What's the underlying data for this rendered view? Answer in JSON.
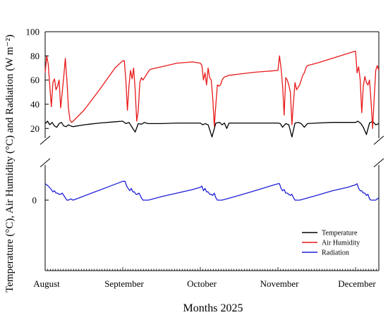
{
  "chart_data": {
    "type": "line",
    "title": "",
    "xlabel": "Months 2025",
    "ylabel": "Temperature (°C), Air Humidity (°C) and Radiation (W m⁻²)",
    "y_break": true,
    "upper_panel": {
      "ylim": [
        12,
        100
      ],
      "yticks": [
        "20",
        "40",
        "60",
        "80",
        "100"
      ]
    },
    "lower_panel": {
      "ylim": [
        -60,
        30
      ],
      "yticks": [
        "0"
      ]
    },
    "xlim": [
      0,
      4.3
    ],
    "x_tick_months": [
      "August",
      "September",
      "October",
      "November",
      "December"
    ],
    "x_tick_positions": [
      0,
      1,
      2,
      3,
      4
    ],
    "legend_position": "bottom-right",
    "grid": false,
    "series": [
      {
        "name": "Temperature",
        "color": "#000000",
        "panel": "upper",
        "x": [
          0,
          0.03,
          0.06,
          0.09,
          0.12,
          0.15,
          0.18,
          0.21,
          0.24,
          0.27,
          0.3,
          0.33,
          0.36,
          0.5,
          0.7,
          0.9,
          1.0,
          1.04,
          1.08,
          1.12,
          1.16,
          1.2,
          1.24,
          1.28,
          1.32,
          1.36,
          1.5,
          1.7,
          1.9,
          2.0,
          2.03,
          2.06,
          2.1,
          2.15,
          2.2,
          2.25,
          2.28,
          2.31,
          2.34,
          2.37,
          2.5,
          2.7,
          2.9,
          3.0,
          3.03,
          3.06,
          3.1,
          3.14,
          3.18,
          3.22,
          3.26,
          3.3,
          3.34,
          3.38,
          3.5,
          3.7,
          3.9,
          4.0,
          4.03,
          4.07,
          4.1,
          4.14,
          4.18,
          4.22,
          4.26,
          4.3
        ],
        "y": [
          24,
          26,
          23,
          25,
          22,
          21,
          24,
          25,
          22,
          21.5,
          23,
          22,
          21.5,
          23,
          24.5,
          25.5,
          26,
          24,
          25,
          21,
          17,
          24,
          23.5,
          25,
          24,
          24,
          24,
          24.5,
          24.5,
          24.5,
          23,
          24,
          23,
          13,
          24.5,
          25,
          23,
          24.5,
          20,
          24.5,
          24.5,
          24.5,
          24.5,
          24.5,
          24,
          21,
          24,
          23,
          13,
          24.5,
          25,
          24,
          21,
          24,
          24.5,
          25,
          25,
          25,
          26,
          24,
          21,
          15,
          24.5,
          26,
          23,
          24
        ]
      },
      {
        "name": "Air Humidity",
        "color": "#e8191a",
        "panel": "upper",
        "x": [
          0,
          0.02,
          0.04,
          0.06,
          0.08,
          0.1,
          0.12,
          0.14,
          0.16,
          0.18,
          0.2,
          0.22,
          0.24,
          0.26,
          0.28,
          0.3,
          0.32,
          0.34,
          0.36,
          0.5,
          0.7,
          0.9,
          1.0,
          1.02,
          1.04,
          1.06,
          1.08,
          1.1,
          1.12,
          1.14,
          1.16,
          1.18,
          1.2,
          1.22,
          1.24,
          1.26,
          1.28,
          1.3,
          1.32,
          1.34,
          1.36,
          1.5,
          1.7,
          1.9,
          2.0,
          2.02,
          2.04,
          2.06,
          2.08,
          2.1,
          2.12,
          2.14,
          2.16,
          2.18,
          2.2,
          2.22,
          2.24,
          2.26,
          2.28,
          2.3,
          2.32,
          2.34,
          2.36,
          2.38,
          2.5,
          2.7,
          2.9,
          3.0,
          3.02,
          3.04,
          3.06,
          3.08,
          3.1,
          3.12,
          3.14,
          3.16,
          3.18,
          3.2,
          3.22,
          3.24,
          3.26,
          3.28,
          3.3,
          3.32,
          3.34,
          3.36,
          3.38,
          3.5,
          3.7,
          3.9,
          4.0,
          4.02,
          4.04,
          4.06,
          4.08,
          4.1,
          4.12,
          4.14,
          4.16,
          4.18,
          4.2,
          4.22,
          4.24,
          4.26,
          4.28,
          4.3
        ],
        "y": [
          66,
          80,
          73,
          55,
          38,
          58,
          61,
          52,
          55,
          60,
          37,
          50,
          63,
          78,
          60,
          37,
          27,
          25,
          26,
          35,
          52,
          70,
          76,
          76,
          60,
          35,
          55,
          68,
          61,
          70,
          52,
          26,
          35,
          58,
          62,
          60,
          62,
          64,
          66,
          68,
          69,
          71,
          74,
          75,
          74,
          72,
          60,
          66,
          56,
          70,
          62,
          60,
          45,
          22,
          40,
          56,
          55,
          56,
          60,
          62,
          63,
          63,
          64,
          64,
          65,
          66.5,
          67.5,
          68,
          80,
          70,
          55,
          31,
          62,
          60,
          56,
          50,
          23,
          42,
          58,
          52,
          54,
          56,
          60,
          64,
          66,
          70,
          72,
          74,
          78,
          82,
          84,
          66,
          71,
          60,
          33,
          55,
          63,
          58,
          56,
          60,
          42,
          20,
          45,
          68,
          72,
          68
        ]
      },
      {
        "name": "Radiation",
        "color": "#1f1fd6",
        "panel": "lower",
        "x": [
          0,
          0.04,
          0.08,
          0.1,
          0.12,
          0.14,
          0.16,
          0.18,
          0.2,
          0.22,
          0.25,
          0.28,
          0.3,
          0.33,
          0.36,
          0.6,
          0.8,
          1.0,
          1.03,
          1.05,
          1.07,
          1.09,
          1.11,
          1.13,
          1.15,
          1.17,
          1.19,
          1.21,
          1.24,
          1.26,
          1.28,
          1.33,
          1.5,
          1.7,
          1.9,
          2.0,
          2.02,
          2.04,
          2.06,
          2.08,
          2.1,
          2.12,
          2.14,
          2.16,
          2.18,
          2.2,
          2.22,
          2.24,
          2.28,
          2.5,
          2.7,
          2.9,
          3.0,
          3.02,
          3.04,
          3.06,
          3.08,
          3.1,
          3.12,
          3.14,
          3.16,
          3.18,
          3.2,
          3.22,
          3.24,
          3.28,
          3.5,
          3.7,
          3.9,
          4.0,
          4.02,
          4.04,
          4.06,
          4.08,
          4.1,
          4.12,
          4.14,
          4.16,
          4.18,
          4.2,
          4.22,
          4.24,
          4.26,
          4.28,
          4.3
        ],
        "y": [
          14,
          12,
          9,
          7,
          8,
          6,
          6,
          5,
          5,
          6,
          3,
          0,
          0,
          1,
          0,
          6,
          11,
          16,
          16,
          12,
          10,
          8,
          10,
          7,
          7,
          5,
          5,
          6,
          2,
          0,
          0,
          0,
          3,
          6,
          9,
          11,
          12,
          8,
          10,
          7,
          7,
          5,
          5,
          4,
          6,
          2,
          0,
          0,
          0,
          4,
          8,
          12,
          14,
          14,
          10,
          8,
          9,
          6,
          6,
          5,
          4,
          5,
          2,
          0,
          0,
          0,
          4,
          8,
          11,
          13,
          14,
          10,
          8,
          8,
          6,
          6,
          4,
          5,
          1,
          0,
          0,
          0,
          0,
          1,
          2
        ]
      }
    ]
  }
}
